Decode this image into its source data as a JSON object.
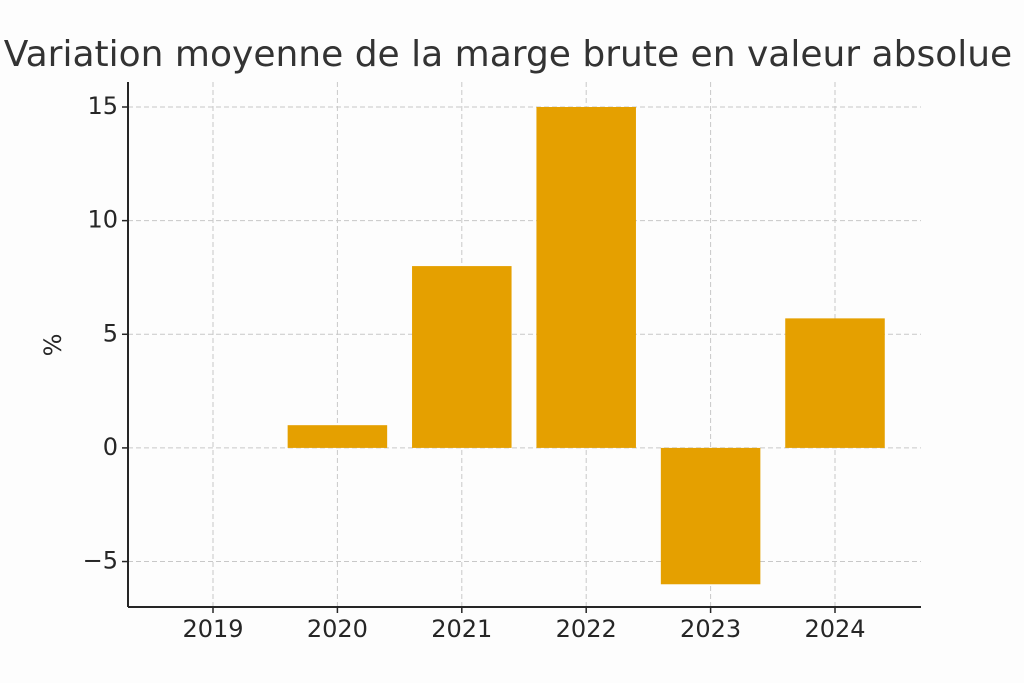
{
  "chart_data": {
    "type": "bar",
    "title": "Variation moyenne de la marge brute en valeur absolue",
    "y_label": "%",
    "categories": [
      "2019",
      "2020",
      "2021",
      "2022",
      "2023",
      "2024"
    ],
    "values": [
      0,
      1,
      8,
      15,
      -6,
      5.7
    ],
    "color": "#e5a000",
    "ylim": [
      -7,
      16.1
    ],
    "yticks": [
      {
        "value": -5,
        "label": "−5"
      },
      0,
      5,
      10,
      15
    ],
    "grid": true
  }
}
